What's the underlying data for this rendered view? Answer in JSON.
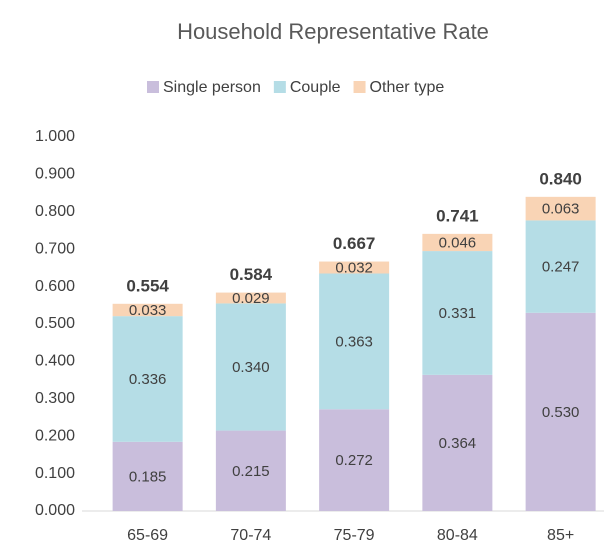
{
  "chart_data": {
    "type": "stacked_bar",
    "title": "Household Representative Rate",
    "categories": [
      "65-69",
      "70-74",
      "75-79",
      "80-84",
      "85+"
    ],
    "series": [
      {
        "name": "Single person",
        "color": "#c9bedc",
        "values": [
          0.185,
          0.215,
          0.272,
          0.364,
          0.53
        ],
        "value_labels": [
          "0.185",
          "0.215",
          "0.272",
          "0.364",
          "0.530"
        ]
      },
      {
        "name": "Couple",
        "color": "#b5dde6",
        "values": [
          0.336,
          0.34,
          0.363,
          0.331,
          0.247
        ],
        "value_labels": [
          "0.336",
          "0.340",
          "0.363",
          "0.331",
          "0.247"
        ]
      },
      {
        "name": "Other type",
        "color": "#f9d4b5",
        "values": [
          0.033,
          0.029,
          0.032,
          0.046,
          0.063
        ],
        "value_labels": [
          "0.033",
          "0.029",
          "0.032",
          "0.046",
          "0.063"
        ]
      }
    ],
    "totals": [
      0.554,
      0.584,
      0.667,
      0.741,
      0.84
    ],
    "total_labels": [
      "0.554",
      "0.584",
      "0.667",
      "0.741",
      "0.840"
    ],
    "ylim": [
      0,
      1
    ],
    "yticks": [
      {
        "value": 0,
        "label": "0.000"
      },
      {
        "value": 0.1,
        "label": "0.100"
      },
      {
        "value": 0.2,
        "label": "0.200"
      },
      {
        "value": 0.3,
        "label": "0.300"
      },
      {
        "value": 0.4,
        "label": "0.400"
      },
      {
        "value": 0.5,
        "label": "0.500"
      },
      {
        "value": 0.6,
        "label": "0.600"
      },
      {
        "value": 0.7,
        "label": "0.700"
      },
      {
        "value": 0.8,
        "label": "0.800"
      },
      {
        "value": 0.9,
        "label": "0.900"
      },
      {
        "value": 1,
        "label": "1.000"
      }
    ],
    "legend": "top"
  }
}
